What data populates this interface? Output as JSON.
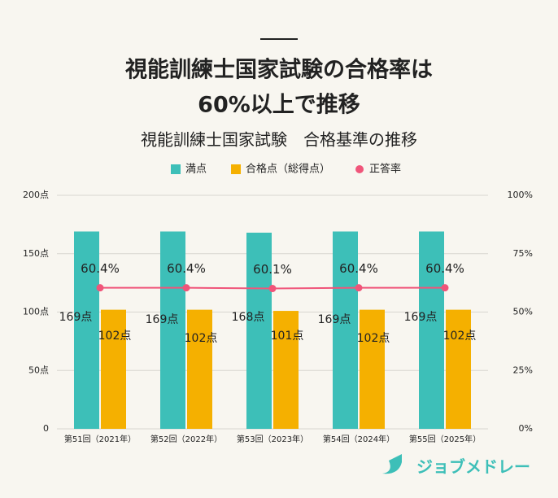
{
  "chart_data": {
    "type": "bar",
    "title": [
      "視能訓練士国家試験の合格率は",
      "60%以上で推移"
    ],
    "subtitle": "視能訓練士国家試験　合格基準の推移",
    "categories": [
      "第51回（2021年）",
      "第52回（2022年）",
      "第53回（2023年）",
      "第54回（2024年）",
      "第55回（2025年）"
    ],
    "series": [
      {
        "name": "満点",
        "color": "#3dbfb8",
        "type": "bar",
        "values": [
          169,
          169,
          168,
          169,
          169
        ],
        "value_labels": [
          "169点",
          "169点",
          "168点",
          "169点",
          "169点"
        ]
      },
      {
        "name": "合格点（総得点）",
        "color": "#f5b000",
        "type": "bar",
        "values": [
          102,
          102,
          101,
          102,
          102
        ],
        "value_labels": [
          "102点",
          "102点",
          "101点",
          "102点",
          "102点"
        ]
      },
      {
        "name": "正答率",
        "color": "#f0557a",
        "type": "line",
        "axis": "y2",
        "values": [
          60.4,
          60.4,
          60.1,
          60.4,
          60.4
        ],
        "value_labels": [
          "60.4%",
          "60.4%",
          "60.1%",
          "60.4%",
          "60.4%"
        ]
      }
    ],
    "ylim": [
      0,
      200
    ],
    "yticks": [
      {
        "value": 0,
        "label": "0"
      },
      {
        "value": 50,
        "label": "50点"
      },
      {
        "value": 100,
        "label": "100点"
      },
      {
        "value": 150,
        "label": "150点"
      },
      {
        "value": 200,
        "label": "200点"
      }
    ],
    "y2lim": [
      0,
      100
    ],
    "y2ticks": [
      {
        "value": 0,
        "label": "0%"
      },
      {
        "value": 25,
        "label": "25%"
      },
      {
        "value": 50,
        "label": "50%"
      },
      {
        "value": 75,
        "label": "75%"
      },
      {
        "value": 100,
        "label": "100%"
      }
    ],
    "grid": true,
    "legend": "top"
  },
  "brand": "ジョブメドレー"
}
